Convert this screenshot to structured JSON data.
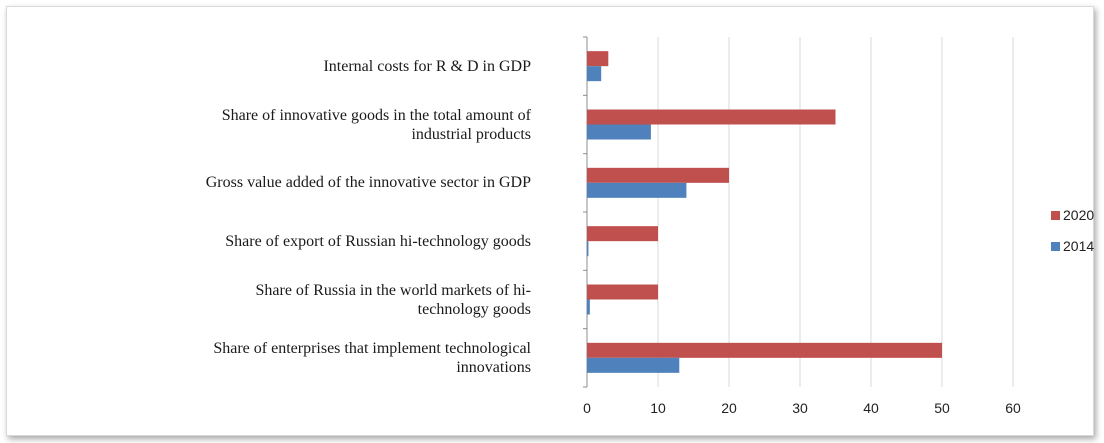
{
  "chart_data": {
    "type": "bar",
    "orientation": "horizontal",
    "categories": [
      "Internal costs for R & D in GDP",
      "Share of innovative goods in the total amount of industrial  products",
      "Gross value added of the innovative sector in GDP",
      "Share of export of Russian hi-technology goods",
      "Share of Russia in the world markets of hi-technology goods",
      "Share of enterprises that implement technological innovations"
    ],
    "category_lines": [
      [
        "Internal costs for R & D in GDP"
      ],
      [
        "Share of innovative goods in the total amount of",
        "industrial  products"
      ],
      [
        "Gross value added of the innovative sector in GDP"
      ],
      [
        "Share of export of Russian hi-technology goods"
      ],
      [
        "Share of Russia in the world markets of hi-",
        "technology goods"
      ],
      [
        "Share of enterprises that implement technological",
        "innovations"
      ]
    ],
    "series": [
      {
        "name": "2020",
        "color": "#c0504d",
        "values": [
          3,
          35,
          20,
          10,
          10,
          50
        ]
      },
      {
        "name": "2014",
        "color": "#4f81bd",
        "values": [
          2,
          9,
          14,
          0.2,
          0.4,
          13
        ]
      }
    ],
    "xlim": [
      0,
      60
    ],
    "xticks": [
      "0",
      "10",
      "20",
      "30",
      "40",
      "50",
      "60"
    ],
    "grid": true,
    "legend_position": "right",
    "title": "",
    "xlabel": "",
    "ylabel": ""
  }
}
